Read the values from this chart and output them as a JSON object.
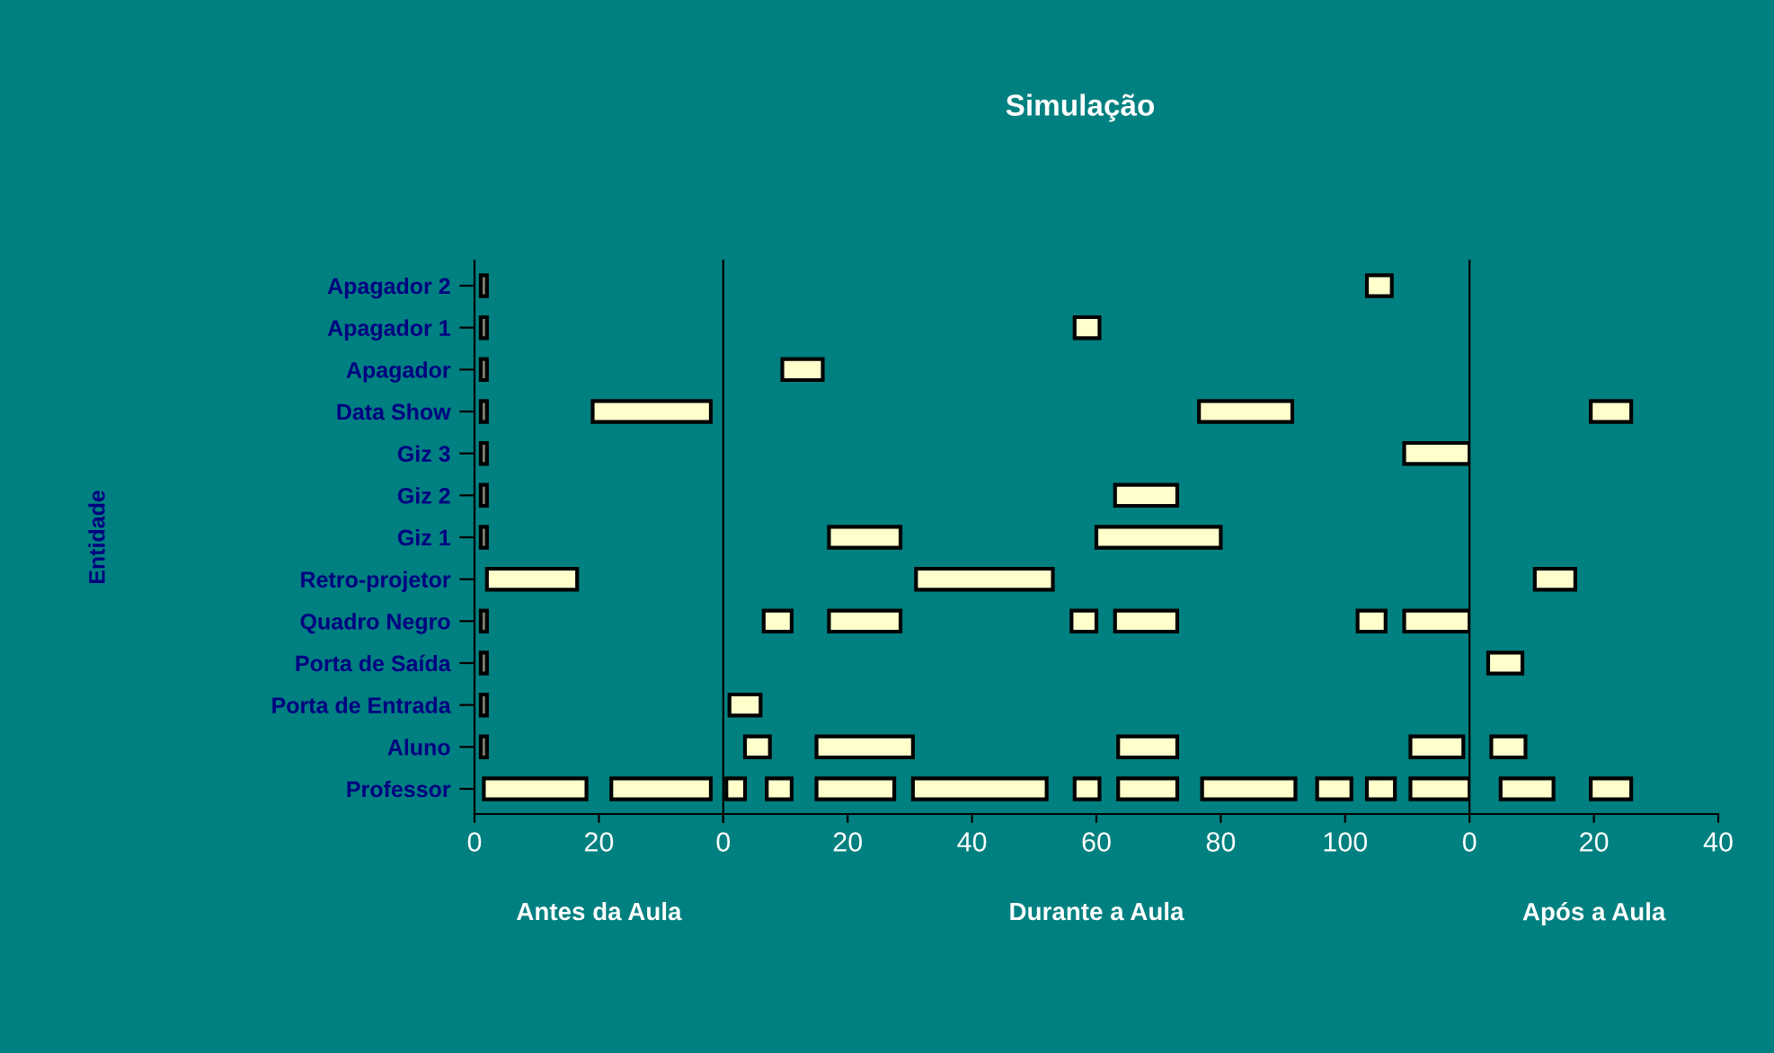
{
  "chart_data": [
    {
      "type": "bar",
      "orientation": "horizontal",
      "ylabel": "Entidade",
      "xlabel": "Antes da Aula",
      "categories": [
        "Apagador 2",
        "Apagador 1",
        "Apagador",
        "Data Show",
        "Giz 3",
        "Giz 2",
        "Giz 1",
        "Retro-projetor",
        "Quadro Negro",
        "Porta de Saída",
        "Porta de Entrada",
        "Aluno",
        "Professor"
      ],
      "xlim": [
        0,
        40
      ],
      "xticks": [
        0,
        20,
        {
          "value": 40,
          "label": null
        }
      ],
      "series": [
        {
          "color": "#808070",
          "values": [
            1,
            1,
            1,
            1,
            1,
            1,
            1,
            null,
            1,
            1,
            1,
            1,
            null
          ],
          "base": [
            1,
            1,
            1,
            1,
            1,
            1,
            1,
            null,
            1,
            1,
            1,
            1,
            null
          ]
        },
        {
          "color": "#ffffcc",
          "values": [
            null,
            null,
            null,
            19,
            null,
            null,
            null,
            14.5,
            null,
            null,
            null,
            null,
            16.5
          ],
          "base": [
            null,
            null,
            null,
            19,
            null,
            null,
            null,
            2,
            null,
            null,
            null,
            null,
            1.5
          ]
        },
        {
          "color": "#ffffcc",
          "values": [
            null,
            null,
            null,
            null,
            null,
            null,
            null,
            null,
            null,
            null,
            null,
            null,
            16
          ],
          "base": [
            null,
            null,
            null,
            null,
            null,
            null,
            null,
            null,
            null,
            null,
            null,
            null,
            22
          ]
        }
      ]
    },
    {
      "type": "bar",
      "orientation": "horizontal",
      "title": "Simulação",
      "xlabel": "Durante a Aula",
      "tick_labels": "x",
      "xlim": [
        0,
        120
      ],
      "xticks": [
        0,
        20,
        40,
        60,
        80,
        100
      ],
      "series": [
        {
          "color": "#ffffcc",
          "values": [
            4,
            4,
            6.5,
            15,
            10.5,
            10,
            11.5,
            22,
            4.5,
            null,
            5,
            4,
            3
          ],
          "base": [
            103.5,
            56.5,
            9.5,
            76.5,
            109.5,
            63,
            17,
            31,
            6.5,
            null,
            1,
            3.5,
            0.5
          ]
        },
        {
          "color": "#ffffcc",
          "values": [
            null,
            null,
            null,
            null,
            null,
            null,
            20,
            null,
            11.5,
            null,
            null,
            15.5,
            4
          ],
          "base": [
            null,
            null,
            null,
            null,
            null,
            null,
            60,
            null,
            17,
            null,
            null,
            15,
            7
          ]
        },
        {
          "color": "#ffffcc",
          "values": [
            null,
            null,
            null,
            null,
            null,
            null,
            null,
            null,
            4,
            null,
            null,
            9.5,
            12.5
          ],
          "base": [
            null,
            null,
            null,
            null,
            null,
            null,
            null,
            null,
            56,
            null,
            null,
            63.5,
            15
          ]
        },
        {
          "color": "#ffffcc",
          "values": [
            null,
            null,
            null,
            null,
            null,
            null,
            null,
            null,
            10,
            null,
            null,
            8.5,
            21.5
          ],
          "base": [
            null,
            null,
            null,
            null,
            null,
            null,
            null,
            null,
            63,
            null,
            null,
            110.5,
            30.5
          ]
        },
        {
          "color": "#ffffcc",
          "values": [
            null,
            null,
            null,
            null,
            null,
            null,
            null,
            null,
            4.5,
            null,
            null,
            null,
            4
          ],
          "base": [
            null,
            null,
            null,
            null,
            null,
            null,
            null,
            null,
            102,
            null,
            null,
            null,
            56.5
          ]
        },
        {
          "color": "#ffffcc",
          "values": [
            null,
            null,
            null,
            null,
            null,
            null,
            null,
            null,
            10.5,
            null,
            null,
            null,
            9.5
          ],
          "base": [
            null,
            null,
            null,
            null,
            null,
            null,
            null,
            null,
            109.5,
            null,
            null,
            null,
            63.5
          ]
        },
        {
          "color": "#ffffcc",
          "values": [
            null,
            null,
            null,
            null,
            null,
            null,
            null,
            null,
            null,
            null,
            null,
            null,
            15
          ],
          "base": [
            null,
            null,
            null,
            null,
            null,
            null,
            null,
            null,
            null,
            null,
            null,
            null,
            77
          ]
        },
        {
          "color": "#ffffcc",
          "values": [
            null,
            null,
            null,
            null,
            null,
            null,
            null,
            null,
            null,
            null,
            null,
            null,
            5.5
          ],
          "base": [
            null,
            null,
            null,
            null,
            null,
            null,
            null,
            null,
            null,
            null,
            null,
            null,
            95.5
          ]
        },
        {
          "color": "#ffffcc",
          "values": [
            null,
            null,
            null,
            null,
            null,
            null,
            null,
            null,
            null,
            null,
            null,
            null,
            4.5
          ],
          "base": [
            null,
            null,
            null,
            null,
            null,
            null,
            null,
            null,
            null,
            null,
            null,
            null,
            103.5
          ]
        },
        {
          "color": "#ffffcc",
          "values": [
            null,
            null,
            null,
            null,
            null,
            null,
            null,
            null,
            null,
            null,
            null,
            null,
            9.5
          ],
          "base": [
            null,
            null,
            null,
            null,
            null,
            null,
            null,
            null,
            null,
            null,
            null,
            null,
            110.5
          ]
        }
      ]
    },
    {
      "type": "bar",
      "orientation": "horizontal",
      "xlabel": "Após a Aula",
      "tick_labels": "x",
      "xlim": [
        0,
        40
      ],
      "xticks": [
        0,
        20,
        40
      ],
      "series": [
        {
          "color": "#ffffcc",
          "values": [
            null,
            null,
            null,
            6.5,
            null,
            null,
            null,
            6.5,
            null,
            5.5,
            null,
            5.5,
            8.5
          ],
          "base": [
            null,
            null,
            null,
            19.5,
            null,
            null,
            null,
            10.5,
            null,
            3,
            null,
            3.5,
            5
          ]
        },
        {
          "color": "#ffffcc",
          "values": [
            null,
            null,
            null,
            null,
            null,
            null,
            null,
            null,
            null,
            null,
            null,
            null,
            6.5
          ],
          "base": [
            null,
            null,
            null,
            null,
            null,
            null,
            null,
            null,
            null,
            null,
            null,
            null,
            19.5
          ]
        }
      ]
    }
  ]
}
